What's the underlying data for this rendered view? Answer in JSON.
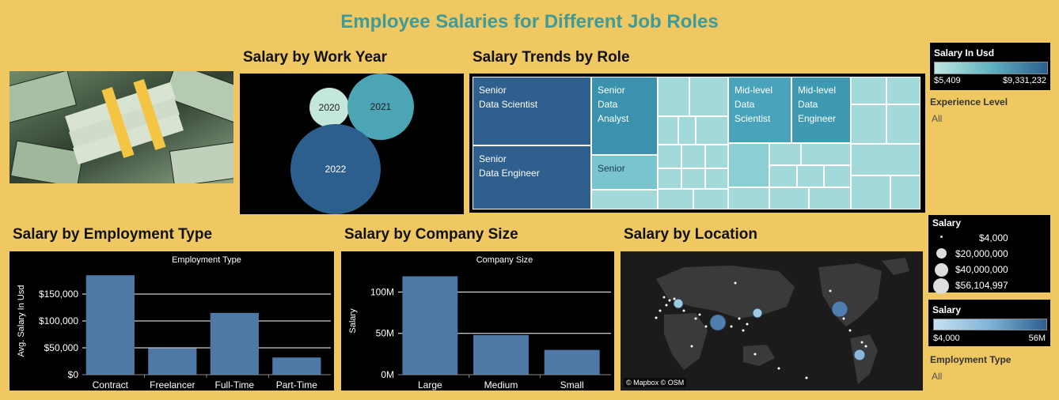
{
  "dashboard": {
    "title": "Employee Salaries for Different Job Roles"
  },
  "colors": {
    "background": "#f0c862",
    "bar": "#4e79a7",
    "title": "#3f9a9a",
    "panel": "#000000"
  },
  "image": {
    "icon": "money-stack-photo"
  },
  "work_year": {
    "title": "Salary by Work Year",
    "chart_data": {
      "type": "bubble",
      "bubbles": [
        {
          "label": "2020"
        },
        {
          "label": "2021"
        },
        {
          "label": "2022"
        }
      ]
    }
  },
  "role": {
    "title": "Salary Trends by Role",
    "chart_data": {
      "type": "treemap",
      "cells": [
        {
          "label": "Senior\nData Scientist"
        },
        {
          "label": "Senior\nData Engineer"
        },
        {
          "label": "Senior\nData\nAnalyst"
        },
        {
          "label": "Senior"
        },
        {
          "label": "Mid-level\nData\nScientist"
        },
        {
          "label": "Mid-level\nData\nEngineer"
        }
      ]
    }
  },
  "legend_salary_usd": {
    "title": "Salary In Usd",
    "min": "$5,409",
    "max": "$9,331,232"
  },
  "filter_experience": {
    "label": "Experience Level",
    "value": "All"
  },
  "employment": {
    "title": "Salary by Employment Type",
    "chart_data": {
      "type": "bar",
      "header": "Employment Type",
      "categories": [
        "Contract",
        "Freelancer",
        "Full-Time",
        "Part-Time"
      ],
      "values": [
        185000,
        49000,
        115000,
        32000
      ],
      "ylabel": "Avg. Salary In Usd",
      "ylim": [
        0,
        200000
      ],
      "ticks": [
        {
          "v": 0,
          "t": "$0"
        },
        {
          "v": 50000,
          "t": "$50,000"
        },
        {
          "v": 100000,
          "t": "$100,000"
        },
        {
          "v": 150000,
          "t": "$150,000"
        }
      ]
    }
  },
  "company": {
    "title": "Salary by Company Size",
    "chart_data": {
      "type": "bar",
      "header": "Company Size",
      "categories": [
        "Large",
        "Medium",
        "Small"
      ],
      "values": [
        119000000,
        48000000,
        30000000
      ],
      "ylabel": "Salary",
      "ylim": [
        0,
        130000000
      ],
      "ticks": [
        {
          "v": 0,
          "t": "0M"
        },
        {
          "v": 50000000,
          "t": "50M"
        },
        {
          "v": 100000000,
          "t": "100M"
        }
      ]
    }
  },
  "location": {
    "title": "Salary by Location",
    "attribution": "© Mapbox © OSM"
  },
  "legend_salary_size": {
    "title": "Salary",
    "items": [
      "$4,000",
      "$20,000,000",
      "$40,000,000",
      "$56,104,997"
    ]
  },
  "legend_salary_color": {
    "title": "Salary",
    "min": "$4,000",
    "max": "56M"
  },
  "filter_employment": {
    "label": "Employment Type",
    "value": "All"
  }
}
